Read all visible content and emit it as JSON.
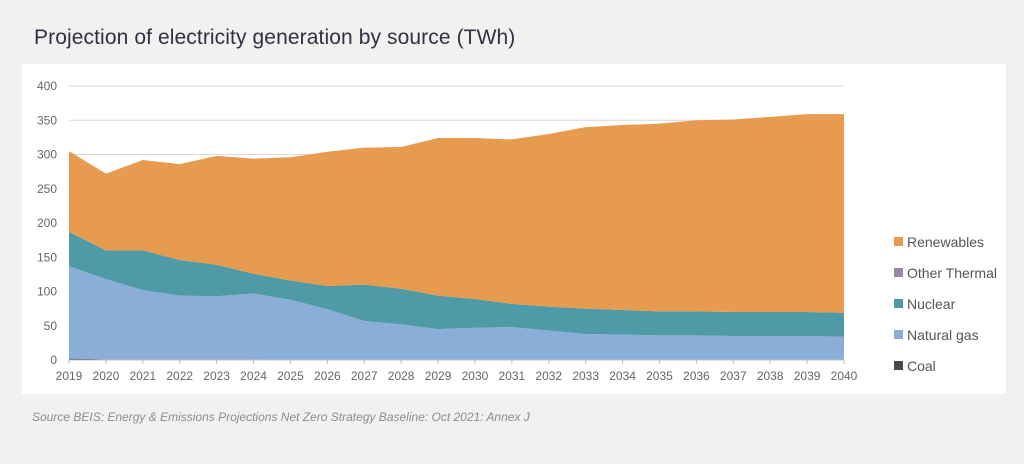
{
  "page": {
    "title": "Projection of electricity generation by source (TWh)",
    "source": "Source BEIS: Energy & Emissions Projections Net Zero Strategy Baseline: Oct 2021: Annex J"
  },
  "chart_data": {
    "type": "area",
    "stacked": true,
    "title": "Projection of electricity generation by source (TWh)",
    "xlabel": "",
    "ylabel": "TWh",
    "ylim": [
      0,
      400
    ],
    "yticks": [
      0,
      50,
      100,
      150,
      200,
      250,
      300,
      350,
      400
    ],
    "grid": true,
    "legend_position": "right",
    "categories": [
      "2019",
      "2020",
      "2021",
      "2022",
      "2023",
      "2024",
      "2025",
      "2026",
      "2027",
      "2028",
      "2029",
      "2030",
      "2031",
      "2032",
      "2033",
      "2034",
      "2035",
      "2036",
      "2037",
      "2038",
      "2039",
      "2040"
    ],
    "series": [
      {
        "name": "Coal",
        "color": "#4a4a4a",
        "values": [
          2,
          1,
          1,
          1,
          1,
          1,
          0,
          0,
          0,
          0,
          0,
          0,
          0,
          0,
          0,
          0,
          0,
          0,
          0,
          0,
          0,
          0
        ]
      },
      {
        "name": "Natural gas",
        "color": "#8aaed8",
        "values": [
          135,
          117,
          101,
          93,
          92,
          96,
          88,
          74,
          57,
          52,
          45,
          47,
          48,
          43,
          38,
          37,
          36,
          36,
          35,
          35,
          35,
          34
        ]
      },
      {
        "name": "Nuclear",
        "color": "#4e9aa6",
        "values": [
          50,
          42,
          58,
          52,
          46,
          29,
          28,
          34,
          53,
          52,
          49,
          42,
          34,
          35,
          37,
          36,
          35,
          35,
          35,
          35,
          35,
          35
        ]
      },
      {
        "name": "Other Thermal",
        "color": "#9a86a6",
        "values": [
          0,
          0,
          0,
          0,
          0,
          0,
          0,
          0,
          0,
          0,
          0,
          0,
          0,
          0,
          0,
          0,
          0,
          0,
          0,
          0,
          0,
          0
        ]
      },
      {
        "name": "Renewables",
        "color": "#e79b4f",
        "values": [
          118,
          112,
          132,
          140,
          159,
          168,
          180,
          196,
          200,
          207,
          230,
          235,
          240,
          252,
          265,
          270,
          274,
          279,
          281,
          285,
          289,
          290
        ]
      }
    ],
    "legend_order": [
      "Renewables",
      "Other Thermal",
      "Nuclear",
      "Natural gas",
      "Coal"
    ]
  }
}
